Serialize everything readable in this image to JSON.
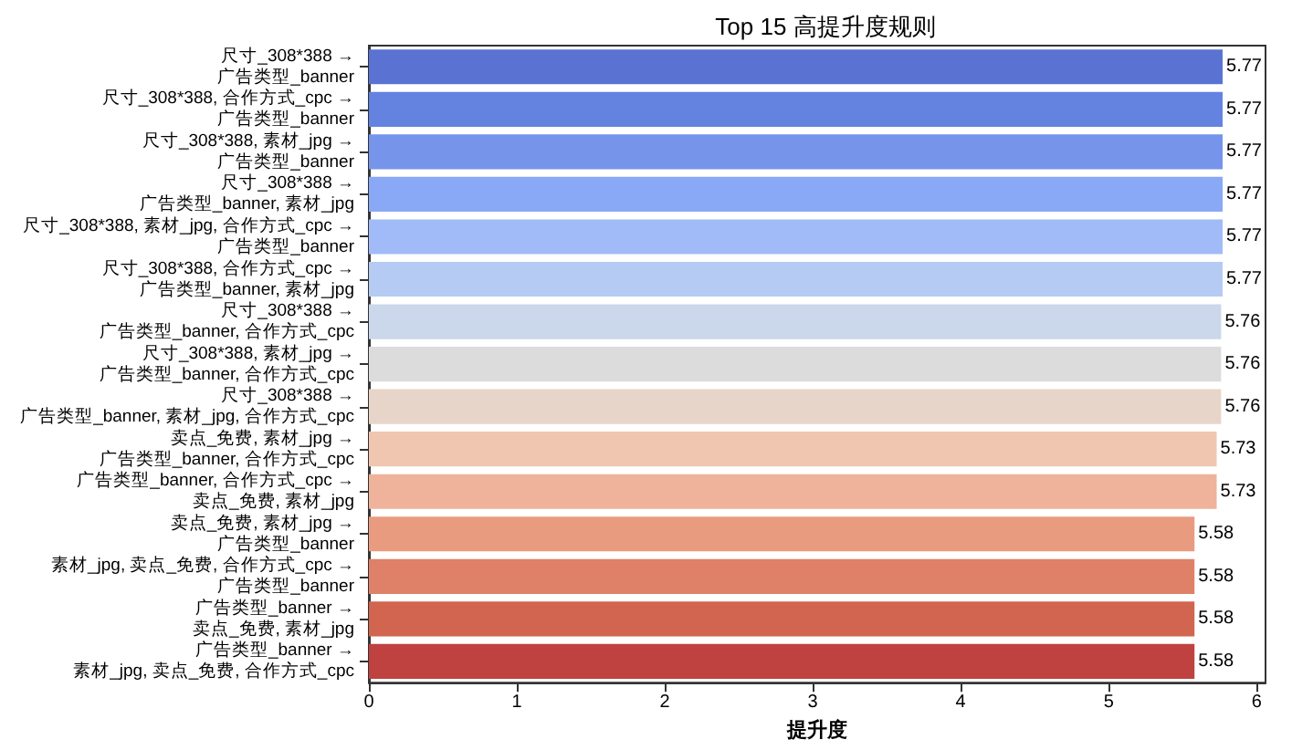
{
  "chart_data": {
    "type": "bar",
    "orientation": "horizontal",
    "title": "Top 15 高提升度规则",
    "xlabel": "提升度",
    "categories": [
      "尺寸_308*388 →\n广告类型_banner",
      "尺寸_308*388, 合作方式_cpc →\n广告类型_banner",
      "尺寸_308*388, 素材_jpg →\n广告类型_banner",
      "尺寸_308*388 →\n广告类型_banner, 素材_jpg",
      "尺寸_308*388, 素材_jpg, 合作方式_cpc →\n广告类型_banner",
      "尺寸_308*388, 合作方式_cpc →\n广告类型_banner, 素材_jpg",
      "尺寸_308*388 →\n广告类型_banner, 合作方式_cpc",
      "尺寸_308*388, 素材_jpg →\n广告类型_banner, 合作方式_cpc",
      "尺寸_308*388 →\n广告类型_banner, 素材_jpg, 合作方式_cpc",
      "卖点_免费, 素材_jpg →\n广告类型_banner, 合作方式_cpc",
      "广告类型_banner, 合作方式_cpc →\n卖点_免费, 素材_jpg",
      "卖点_免费, 素材_jpg →\n广告类型_banner",
      "素材_jpg, 卖点_免费, 合作方式_cpc →\n广告类型_banner",
      "广告类型_banner →\n卖点_免费, 素材_jpg",
      "广告类型_banner →\n素材_jpg, 卖点_免费, 合作方式_cpc"
    ],
    "values": [
      5.77,
      5.77,
      5.77,
      5.77,
      5.77,
      5.77,
      5.76,
      5.76,
      5.76,
      5.73,
      5.73,
      5.58,
      5.58,
      5.58,
      5.58
    ],
    "colors": [
      "#5a73d2",
      "#6482e0",
      "#7594ea",
      "#89a8f5",
      "#a0bbf7",
      "#b5cbf4",
      "#cbd7ea",
      "#dcdcdc",
      "#e8d5c9",
      "#f0c6b1",
      "#efb29a",
      "#e99b80",
      "#df8068",
      "#d1654f",
      "#bf4140"
    ],
    "data_labels": true,
    "xlim": [
      0,
      6.06
    ],
    "xticks": [
      0,
      1,
      2,
      3,
      4,
      5,
      6
    ],
    "grid": false
  }
}
